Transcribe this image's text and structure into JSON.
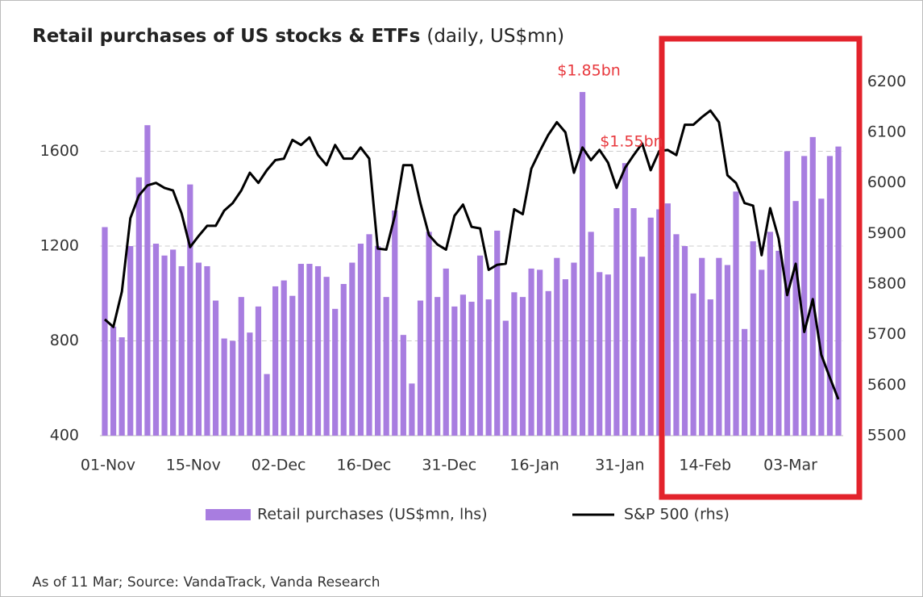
{
  "chart_data": {
    "type": "bar",
    "title": "Retail purchases of US stocks & ETFs",
    "title_unit": "(daily, US$mn)",
    "source": "As of 11 Mar; Source: VandaTrack, Vanda Research",
    "categories": [
      "01-Nov",
      null,
      null,
      null,
      null,
      null,
      null,
      null,
      null,
      null,
      "15-Nov",
      null,
      null,
      null,
      null,
      null,
      null,
      null,
      null,
      null,
      "02-Dec",
      null,
      null,
      null,
      null,
      null,
      null,
      null,
      null,
      null,
      "16-Dec",
      null,
      null,
      null,
      null,
      null,
      null,
      null,
      null,
      null,
      "31-Dec",
      null,
      null,
      null,
      null,
      null,
      null,
      null,
      null,
      null,
      "16-Jan",
      null,
      null,
      null,
      null,
      null,
      null,
      null,
      null,
      null,
      "31-Jan",
      null,
      null,
      null,
      null,
      null,
      null,
      null,
      null,
      null,
      "14-Feb",
      null,
      null,
      null,
      null,
      null,
      null,
      null,
      null,
      null,
      "03-Mar",
      null,
      null,
      null,
      null,
      null,
      null
    ],
    "series": [
      {
        "name": "Retail purchases (US$mn, lhs)",
        "type": "bar",
        "color": "#a87de0",
        "values": [
          1280,
          860,
          815,
          1200,
          1490,
          1710,
          1210,
          1160,
          1185,
          1115,
          1460,
          1130,
          1115,
          970,
          810,
          800,
          985,
          835,
          945,
          660,
          1030,
          1055,
          990,
          1125,
          1125,
          1115,
          1070,
          935,
          1040,
          1130,
          1210,
          1250,
          1200,
          985,
          1350,
          825,
          620,
          970,
          1260,
          985,
          1105,
          945,
          995,
          965,
          1160,
          975,
          1265,
          885,
          1005,
          985,
          1105,
          1100,
          1010,
          1150,
          1060,
          1130,
          1850,
          1260,
          1090,
          1080,
          1360,
          1550,
          1360,
          1155,
          1320,
          1355,
          1380,
          1250,
          1200,
          1000,
          1150,
          975,
          1150,
          1120,
          1430,
          850,
          1220,
          1100,
          1260,
          1180,
          1600,
          1390,
          1580,
          1660,
          1400,
          1580,
          1620
        ],
        "value_labels": [
          null,
          null,
          null,
          null,
          null,
          null,
          null,
          null,
          null,
          null,
          null,
          null,
          null,
          null,
          null,
          null,
          null,
          null,
          null,
          null,
          null,
          null,
          null,
          null,
          null,
          null,
          null,
          null,
          null,
          null,
          null,
          null,
          null,
          null,
          null,
          null,
          null,
          null,
          null,
          null,
          null,
          null,
          null,
          null,
          null,
          null,
          null,
          null,
          null,
          null,
          null,
          null,
          null,
          null,
          null,
          null,
          "$1.85bn",
          null,
          null,
          null,
          null,
          "$1.55bn",
          null,
          null,
          null,
          null,
          null,
          null,
          null,
          null,
          null,
          null,
          null,
          null,
          null,
          null,
          null,
          null,
          null,
          null,
          null,
          null,
          null,
          null,
          null,
          null,
          null
        ],
        "label_color": "#e8383d"
      },
      {
        "name": "S&P 500 (rhs)",
        "type": "line",
        "axis": "y2",
        "color": "#000000",
        "values": [
          5730,
          5715,
          5785,
          5930,
          5975,
          5995,
          6000,
          5990,
          5985,
          5940,
          5873,
          5895,
          5915,
          5915,
          5945,
          5960,
          5985,
          6020,
          6000,
          6025,
          6045,
          6048,
          6085,
          6075,
          6090,
          6055,
          6035,
          6075,
          6048,
          6048,
          6070,
          6048,
          5870,
          5868,
          5935,
          6035,
          6035,
          5960,
          5897,
          5878,
          5868,
          5935,
          5957,
          5913,
          5910,
          5828,
          5838,
          5840,
          5948,
          5938,
          6028,
          6063,
          6095,
          6120,
          6100,
          6020,
          6070,
          6045,
          6065,
          6040,
          5990,
          6030,
          6055,
          6078,
          6025,
          6063,
          6065,
          6055,
          6115,
          6115,
          6130,
          6143,
          6120,
          6015,
          6000,
          5960,
          5955,
          5857,
          5950,
          5890,
          5778,
          5840,
          5705,
          5770,
          5660,
          5615,
          5572
        ]
      }
    ],
    "ylim": [
      400,
      2000
    ],
    "yticks": [
      400,
      800,
      1200,
      1600
    ],
    "y2lim": [
      5500,
      6250
    ],
    "y2ticks": [
      5500,
      5600,
      5700,
      5800,
      5900,
      6000,
      6100,
      6200
    ],
    "grid": true
  }
}
